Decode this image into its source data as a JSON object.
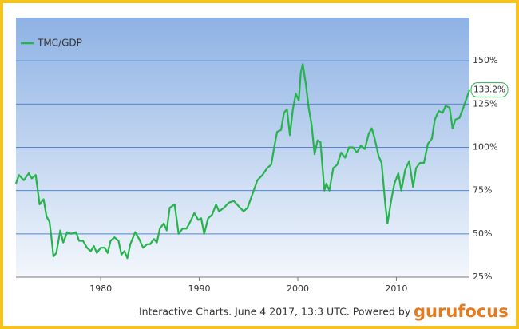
{
  "chart_data": {
    "type": "line",
    "x": [
      1971.4,
      1971.7,
      1972.2,
      1972.7,
      1973.0,
      1973.4,
      1973.8,
      1974.2,
      1974.5,
      1974.8,
      1975.0,
      1975.2,
      1975.5,
      1975.9,
      1976.2,
      1976.6,
      1977.0,
      1977.5,
      1977.8,
      1978.2,
      1978.6,
      1979.0,
      1979.3,
      1979.6,
      1980.0,
      1980.4,
      1980.7,
      1981.0,
      1981.4,
      1981.8,
      1982.1,
      1982.4,
      1982.7,
      1983.0,
      1983.5,
      1983.9,
      1984.3,
      1984.7,
      1985.0,
      1985.4,
      1985.7,
      1986.0,
      1986.4,
      1986.7,
      1987.0,
      1987.5,
      1987.9,
      1988.3,
      1988.7,
      1989.0,
      1989.5,
      1989.9,
      1990.2,
      1990.5,
      1990.9,
      1991.3,
      1991.7,
      1992.0,
      1992.5,
      1993.0,
      1993.5,
      1994.0,
      1994.5,
      1994.9,
      1995.4,
      1995.9,
      1996.4,
      1996.9,
      1997.3,
      1997.6,
      1997.9,
      1998.3,
      1998.6,
      1998.9,
      1999.2,
      1999.5,
      1999.8,
      2000.1,
      2000.3,
      2000.5,
      2000.8,
      2001.1,
      2001.4,
      2001.7,
      2002.0,
      2002.3,
      2002.7,
      2002.9,
      2003.2,
      2003.6,
      2004.0,
      2004.4,
      2004.8,
      2005.2,
      2005.6,
      2006.0,
      2006.4,
      2006.8,
      2007.2,
      2007.5,
      2007.8,
      2008.2,
      2008.5,
      2008.9,
      2009.1,
      2009.5,
      2009.8,
      2010.2,
      2010.5,
      2010.9,
      2011.3,
      2011.7,
      2012.0,
      2012.4,
      2012.8,
      2013.2,
      2013.6,
      2013.9,
      2014.3,
      2014.7,
      2015.0,
      2015.4,
      2015.7,
      2016.0,
      2016.4,
      2016.8,
      2017.42
    ],
    "series": [
      {
        "name": "TMC/GDP",
        "color": "#27b34b",
        "values": [
          79,
          84,
          81,
          85,
          82,
          84,
          67,
          70,
          60,
          57,
          48,
          37,
          39,
          52,
          45,
          51,
          50,
          51,
          46,
          46,
          42,
          40,
          43,
          39,
          42,
          42,
          39,
          46,
          48,
          46,
          38,
          40,
          36,
          44,
          51,
          47,
          42,
          44,
          44,
          47,
          45,
          53,
          56,
          52,
          65,
          67,
          50,
          53,
          53,
          56,
          62,
          58,
          59,
          50,
          59,
          61,
          67,
          63,
          65,
          68,
          69,
          66,
          63,
          65,
          73,
          81,
          84,
          88,
          90,
          100,
          109,
          110,
          120,
          122,
          107,
          122,
          131,
          127,
          143,
          148,
          137,
          123,
          113,
          96,
          104,
          103,
          75,
          79,
          75,
          88,
          90,
          97,
          94,
          100,
          100,
          97,
          101,
          99,
          108,
          111,
          105,
          95,
          91,
          66,
          56,
          70,
          79,
          85,
          75,
          87,
          92,
          77,
          88,
          91,
          91,
          102,
          105,
          116,
          121,
          120,
          124,
          123,
          111,
          116,
          117,
          123,
          133.2
        ],
        "value_labels": [
          null,
          null,
          null,
          null,
          null,
          null,
          null,
          null,
          null,
          null,
          null,
          null,
          null,
          null,
          null,
          null,
          null,
          null,
          null,
          null,
          null,
          null,
          null,
          null,
          null,
          null,
          null,
          null,
          null,
          null,
          null,
          null,
          null,
          null,
          null,
          null,
          null,
          null,
          null,
          null,
          null,
          null,
          null,
          null,
          null,
          null,
          null,
          null,
          null,
          null,
          null,
          null,
          null,
          null,
          null,
          null,
          null,
          null,
          null,
          null,
          null,
          null,
          null,
          null,
          null,
          null,
          null,
          null,
          null,
          null,
          null,
          null,
          null,
          null,
          null,
          null,
          null,
          null,
          null,
          null,
          null,
          null,
          null,
          null,
          null,
          null,
          null,
          null,
          null,
          null,
          null,
          null,
          null,
          null,
          null,
          null,
          null,
          null,
          null,
          null,
          null,
          null,
          null,
          null,
          null,
          null,
          null,
          null,
          null,
          null,
          null,
          null,
          null,
          null,
          null,
          null,
          null,
          null,
          null,
          null,
          null,
          null,
          null,
          null,
          null,
          null,
          "133.2%"
        ]
      }
    ],
    "xlim": [
      1971.4,
      2017.42
    ],
    "xticks": [
      1980,
      1990,
      2000,
      2010
    ],
    "ylim": [
      25,
      175
    ],
    "yticks": [
      {
        "value": 25,
        "label": "25%"
      },
      {
        "value": 50,
        "label": "50%"
      },
      {
        "value": 75,
        "label": "75%"
      },
      {
        "value": 100,
        "label": "100%"
      },
      {
        "value": 125,
        "label": "125%"
      },
      {
        "value": 150,
        "label": "150%"
      }
    ],
    "grid": true,
    "legend": "top-left"
  },
  "footer": {
    "text": "Interactive Charts. June 4 2017, 13:3 UTC. Powered by",
    "brand": "gurufocus"
  }
}
